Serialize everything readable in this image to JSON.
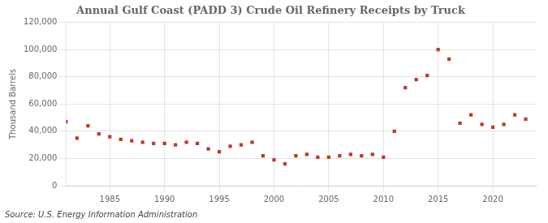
{
  "chart_data": {
    "type": "scatter",
    "title": "Annual Gulf Coast (PADD 3) Crude Oil Refinery Receipts by Truck",
    "y_label": "Thousand Barrels",
    "annotations": [
      "Source: U.S. Energy Information Administration"
    ],
    "x": [
      1981,
      1982,
      1983,
      1984,
      1985,
      1986,
      1987,
      1988,
      1989,
      1990,
      1991,
      1992,
      1993,
      1994,
      1995,
      1996,
      1997,
      1998,
      1999,
      2000,
      2001,
      2002,
      2003,
      2004,
      2005,
      2006,
      2007,
      2008,
      2009,
      2010,
      2011,
      2012,
      2013,
      2014,
      2015,
      2016,
      2017,
      2018,
      2019,
      2020,
      2021,
      2022,
      2023
    ],
    "values": [
      47000,
      35000,
      44000,
      38000,
      36000,
      34000,
      33000,
      32000,
      31000,
      31000,
      30000,
      32000,
      31000,
      27000,
      25000,
      29000,
      30000,
      32000,
      22000,
      19000,
      16000,
      22000,
      23000,
      21000,
      21000,
      22000,
      23000,
      22000,
      23000,
      21000,
      40000,
      72000,
      78000,
      81000,
      100000,
      93000,
      46000,
      52000,
      45000,
      43000,
      45000,
      52000,
      49000
    ],
    "color": "#c0392b",
    "marker": "square",
    "xlim": [
      1981,
      2024
    ],
    "xticks": [
      1985,
      1990,
      1995,
      2000,
      2005,
      2010,
      2015,
      2020
    ],
    "ylim": [
      0,
      120000
    ],
    "yticks": [
      0,
      {
        "value": 20000,
        "label": "20,000"
      },
      {
        "value": 40000,
        "label": "40,000"
      },
      {
        "value": 60000,
        "label": "60,000"
      },
      {
        "value": 80000,
        "label": "80,000"
      },
      {
        "value": 100000,
        "label": "100,000"
      },
      {
        "value": 120000,
        "label": "120,000"
      }
    ],
    "grid": true
  }
}
